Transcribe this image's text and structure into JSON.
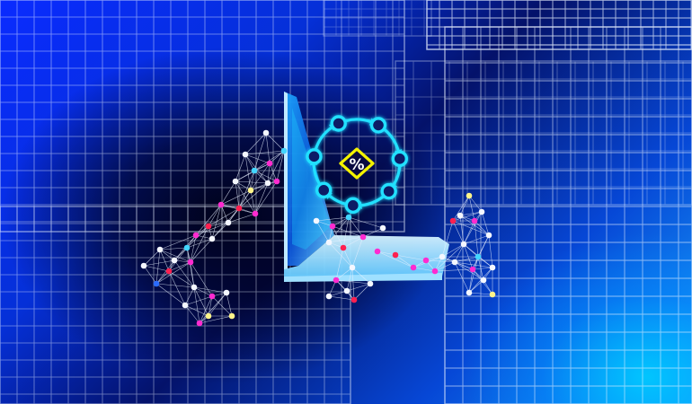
{
  "image": {
    "kind": "illustration",
    "palette": {
      "deep_navy": "#020422",
      "electric_blue": "#0a2bff",
      "bright_cyan": "#29c8ff",
      "grid_white": "#eaf2ff",
      "ring_cyan": "#20e0ff",
      "symbol_yellow": "#f4f200",
      "node_pink": "#ff2bd0",
      "node_red": "#ff2050",
      "node_white": "#f4f7ff",
      "node_yellow": "#fff48a"
    },
    "center_symbol": "%",
    "icons": [
      "laptop-icon",
      "cycle-arrows-icon",
      "percent-badge-icon",
      "network-cluster-icon"
    ]
  }
}
